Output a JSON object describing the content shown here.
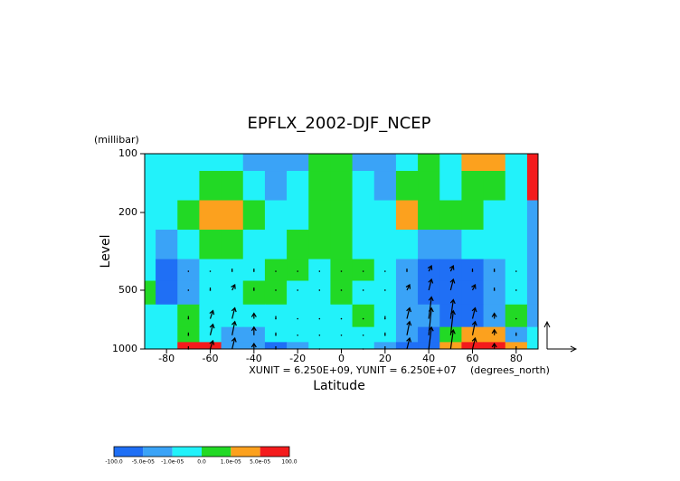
{
  "chart_data": {
    "type": "contour",
    "title": "EPFLX_2002-DJF_NCEP",
    "y_unit": "(millibar)",
    "y_label": "Level",
    "x_label": "Latitude",
    "x_unit": "(degrees_north)",
    "vector_note": "XUNIT = 6.250E+09, YUNIT = 6.250E+07",
    "xlim": [
      -90,
      90
    ],
    "xticks": [
      -80,
      -60,
      -40,
      -20,
      0,
      20,
      40,
      60,
      80
    ],
    "ylim": [
      1000,
      100
    ],
    "ylog": true,
    "yticks": [
      100,
      200,
      500,
      1000
    ],
    "lat": [
      -90,
      -80,
      -70,
      -60,
      -50,
      -40,
      -30,
      -20,
      -10,
      0,
      10,
      20,
      30,
      40,
      50,
      60,
      70,
      80,
      90
    ],
    "level": [
      100,
      150,
      200,
      300,
      400,
      500,
      700,
      850,
      1000
    ],
    "z": [
      [
        -5e-06,
        -5e-06,
        -5e-06,
        -5e-06,
        -5e-06,
        -3e-05,
        -3e-05,
        -3e-05,
        5e-06,
        5e-06,
        -3e-05,
        -3e-05,
        -5e-06,
        5e-06,
        -5e-06,
        3e-05,
        3e-05,
        -5e-06,
        6e-05
      ],
      [
        -5e-06,
        -5e-06,
        -5e-06,
        5e-06,
        5e-06,
        -5e-06,
        -3e-05,
        -5e-06,
        5e-06,
        5e-06,
        -5e-06,
        -3e-05,
        5e-06,
        5e-06,
        -5e-06,
        5e-06,
        5e-06,
        -5e-06,
        6e-05
      ],
      [
        -5e-06,
        -5e-06,
        5e-06,
        3e-05,
        3e-05,
        5e-06,
        -5e-06,
        -5e-06,
        5e-06,
        5e-06,
        -5e-06,
        -5e-06,
        3e-05,
        5e-06,
        5e-06,
        5e-06,
        -5e-06,
        -5e-06,
        -3e-05
      ],
      [
        -5e-06,
        -3e-05,
        -5e-06,
        5e-06,
        5e-06,
        -5e-06,
        -5e-06,
        5e-06,
        5e-06,
        5e-06,
        -5e-06,
        -5e-06,
        -5e-06,
        -3e-05,
        -3e-05,
        -5e-06,
        -5e-06,
        -5e-06,
        -3e-05
      ],
      [
        -5e-06,
        -6e-05,
        -3e-05,
        -5e-06,
        -5e-06,
        -5e-06,
        5e-06,
        5e-06,
        -5e-06,
        5e-06,
        5e-06,
        -5e-06,
        -3e-05,
        -6e-05,
        -6e-05,
        -6e-05,
        -3e-05,
        -5e-06,
        -3e-05
      ],
      [
        5e-06,
        -6e-05,
        -3e-05,
        -5e-06,
        -5e-06,
        5e-06,
        5e-06,
        -5e-06,
        -5e-06,
        5e-06,
        -5e-06,
        -5e-06,
        -3e-05,
        -6e-05,
        -6e-05,
        -6e-05,
        -3e-05,
        -5e-06,
        -3e-05
      ],
      [
        -5e-06,
        -5e-06,
        5e-06,
        -5e-06,
        -5e-06,
        -5e-06,
        -5e-06,
        -5e-06,
        -5e-06,
        -5e-06,
        5e-06,
        -5e-06,
        -3e-05,
        -3e-05,
        -6e-05,
        -6e-05,
        -3e-05,
        5e-06,
        -3e-05
      ],
      [
        -5e-06,
        -5e-06,
        5e-06,
        -5e-06,
        -3e-05,
        -3e-05,
        -5e-06,
        -5e-06,
        -5e-06,
        -5e-06,
        -5e-06,
        -5e-06,
        -3e-05,
        -6e-05,
        5e-06,
        3e-05,
        3e-05,
        -3e-05,
        -5e-06
      ],
      [
        -5e-06,
        -5e-06,
        6e-05,
        6e-05,
        -3e-05,
        -3e-05,
        -6e-05,
        -3e-05,
        -5e-06,
        -5e-06,
        -5e-06,
        -3e-05,
        -6e-05,
        -6e-05,
        3e-05,
        6e-05,
        6e-05,
        3e-05,
        -5e-06
      ]
    ],
    "vectors": {
      "lat": [
        -70,
        -60,
        -50,
        -40,
        -30,
        -20,
        -10,
        0,
        10,
        20,
        30,
        40,
        50,
        60,
        70,
        80
      ],
      "level": [
        400,
        500,
        700,
        850,
        1000
      ],
      "u": [
        [
          0,
          0,
          0,
          0,
          0,
          0,
          0,
          0,
          0,
          0,
          0,
          0.1,
          0.1,
          0,
          0,
          0
        ],
        [
          0,
          0,
          0.1,
          0,
          0,
          0,
          0,
          0,
          0,
          0,
          0.1,
          0.1,
          0.1,
          0.1,
          0,
          0
        ],
        [
          0,
          0.1,
          0.1,
          0,
          0,
          0,
          0,
          0,
          0,
          0,
          0.1,
          0.1,
          0.1,
          0.1,
          0,
          0
        ],
        [
          0,
          0.1,
          0.1,
          0,
          0,
          0,
          0,
          0,
          0,
          0,
          0.1,
          0.1,
          0.1,
          0.1,
          0,
          0
        ],
        [
          0,
          0.1,
          0.1,
          0,
          0,
          0,
          0,
          0,
          0,
          0,
          0.1,
          0.1,
          0.1,
          0.1,
          0,
          0
        ]
      ],
      "v": [
        [
          0,
          0,
          0.1,
          0.1,
          0,
          0,
          0,
          0,
          0,
          0,
          0.1,
          0.2,
          0.2,
          0.1,
          0.1,
          0
        ],
        [
          0,
          0.1,
          0.2,
          0.1,
          0,
          0,
          0,
          0,
          0,
          0,
          0.2,
          0.4,
          0.4,
          0.2,
          0.1,
          0
        ],
        [
          0.1,
          0.3,
          0.4,
          0.2,
          0.1,
          0,
          0,
          0,
          0,
          0.1,
          0.4,
          0.8,
          0.7,
          0.4,
          0.2,
          0
        ],
        [
          0.1,
          0.4,
          0.5,
          0.3,
          0.1,
          0,
          0,
          0,
          0,
          0.1,
          0.5,
          1.0,
          0.9,
          0.5,
          0.2,
          0.1
        ],
        [
          0.1,
          0.3,
          0.4,
          0.2,
          0.1,
          0,
          0,
          0,
          0,
          0.1,
          0.4,
          0.8,
          0.7,
          0.4,
          0.2,
          0.1
        ]
      ]
    },
    "colorbar": {
      "ticks": [
        {
          "value": -100,
          "label": "-100.0"
        },
        {
          "value": -5e-05,
          "label": "-5.0e-05"
        },
        {
          "value": -1e-05,
          "label": "-1.0e-05"
        },
        {
          "value": 0,
          "label": "0.0"
        },
        {
          "value": 1e-05,
          "label": "1.0e-05"
        },
        {
          "value": 5e-05,
          "label": "5.0e-05"
        },
        {
          "value": 100,
          "label": "100.0"
        }
      ],
      "colors": [
        "#1f6ff5",
        "#3aa3f7",
        "#22f2fa",
        "#22d925",
        "#fca11e",
        "#f41b1c"
      ]
    }
  }
}
